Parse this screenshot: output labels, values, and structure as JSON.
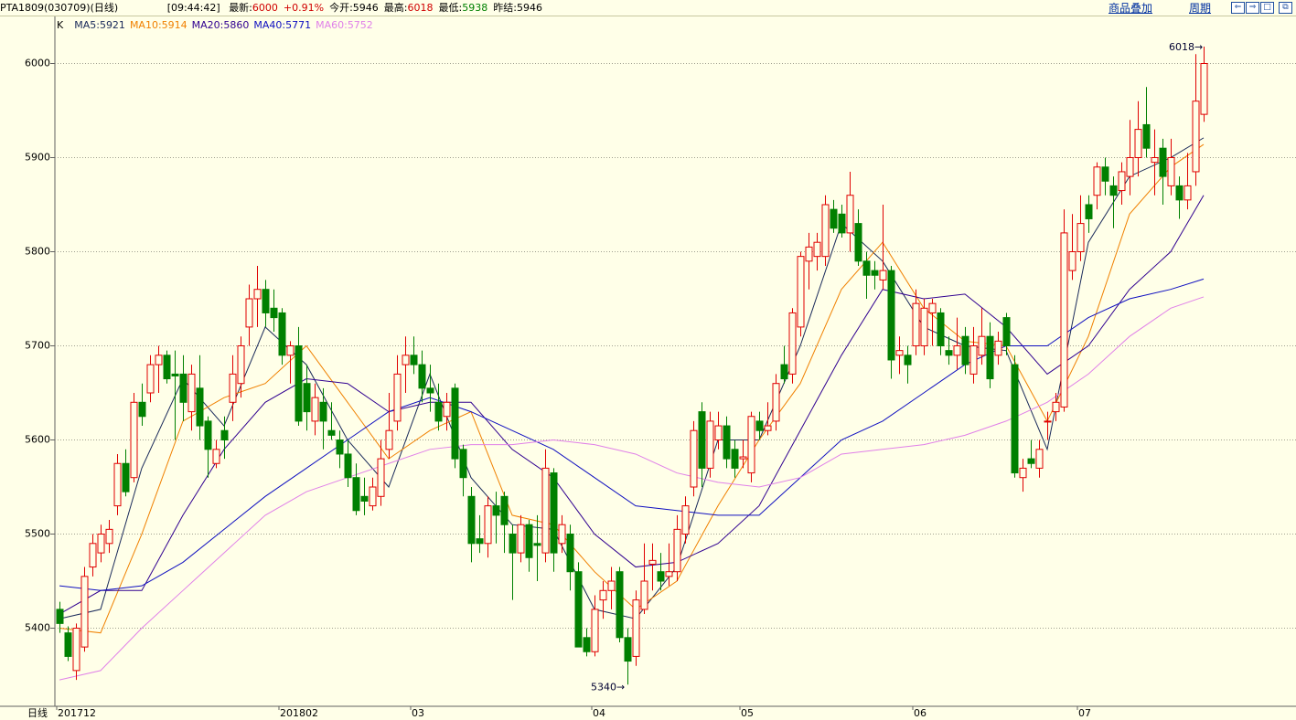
{
  "header": {
    "title": "PTA1809(030709)(日线)",
    "time": "[09:44:42]",
    "quotes": [
      {
        "label": "最新:",
        "value": "6000",
        "color": "#d00000"
      },
      {
        "label": "",
        "value": "+0.91%",
        "color": "#d00000"
      },
      {
        "label": "今开:",
        "value": "5946",
        "color": "#000000"
      },
      {
        "label": "最高:",
        "value": "6018",
        "color": "#d00000"
      },
      {
        "label": "最低:",
        "value": "5938",
        "color": "#008000"
      },
      {
        "label": "昨结:",
        "value": "5946",
        "color": "#000000"
      }
    ],
    "buttons": [
      "商品叠加",
      "周期"
    ]
  },
  "chart_data": {
    "type": "candlestick",
    "label": "K",
    "period_label": "日线",
    "categories": [
      "201712",
      null,
      null,
      null,
      null,
      null,
      null,
      null,
      null,
      null,
      null,
      null,
      null,
      null,
      null,
      null,
      null,
      null,
      null,
      null,
      null,
      null,
      null,
      null,
      null,
      null,
      null,
      "201802",
      null,
      null,
      null,
      null,
      null,
      null,
      null,
      null,
      null,
      null,
      null,
      null,
      null,
      null,
      null,
      "03",
      null,
      null,
      null,
      null,
      null,
      null,
      null,
      null,
      null,
      null,
      null,
      null,
      null,
      null,
      null,
      null,
      null,
      null,
      null,
      null,
      null,
      "04",
      null,
      null,
      null,
      null,
      null,
      null,
      null,
      null,
      null,
      null,
      null,
      null,
      null,
      null,
      null,
      null,
      null,
      "05",
      null,
      null,
      null,
      null,
      null,
      null,
      null,
      null,
      null,
      null,
      null,
      null,
      null,
      null,
      null,
      null,
      null,
      null,
      null,
      null,
      "06",
      null,
      null,
      null,
      null,
      null,
      null,
      null,
      null,
      null,
      null,
      null,
      null,
      null,
      null,
      null,
      null,
      null,
      null,
      null,
      "07",
      null,
      null,
      null,
      null,
      null,
      null,
      null,
      null,
      null,
      null,
      null,
      null,
      null,
      null,
      null
    ],
    "ohlc": [
      [
        5420,
        5428,
        5395,
        5405
      ],
      [
        5395,
        5402,
        5365,
        5370
      ],
      [
        5355,
        5405,
        5345,
        5400
      ],
      [
        5380,
        5465,
        5375,
        5455
      ],
      [
        5465,
        5500,
        5455,
        5490
      ],
      [
        5480,
        5510,
        5470,
        5500
      ],
      [
        5490,
        5515,
        5480,
        5505
      ],
      [
        5530,
        5585,
        5520,
        5575
      ],
      [
        5575,
        5590,
        5540,
        5545
      ],
      [
        5560,
        5650,
        5555,
        5640
      ],
      [
        5640,
        5660,
        5615,
        5625
      ],
      [
        5650,
        5690,
        5640,
        5680
      ],
      [
        5680,
        5700,
        5650,
        5690
      ],
      [
        5690,
        5695,
        5660,
        5665
      ],
      [
        5670,
        5695,
        5600,
        5668
      ],
      [
        5670,
        5690,
        5620,
        5640
      ],
      [
        5630,
        5680,
        5610,
        5670
      ],
      [
        5655,
        5690,
        5600,
        5615
      ],
      [
        5620,
        5625,
        5560,
        5590
      ],
      [
        5575,
        5600,
        5570,
        5590
      ],
      [
        5610,
        5625,
        5580,
        5600
      ],
      [
        5640,
        5690,
        5620,
        5670
      ],
      [
        5660,
        5710,
        5645,
        5700
      ],
      [
        5720,
        5765,
        5700,
        5750
      ],
      [
        5750,
        5785,
        5720,
        5760
      ],
      [
        5760,
        5770,
        5720,
        5735
      ],
      [
        5740,
        5760,
        5715,
        5730
      ],
      [
        5735,
        5740,
        5680,
        5690
      ],
      [
        5690,
        5705,
        5660,
        5700
      ],
      [
        5700,
        5720,
        5615,
        5620
      ],
      [
        5660,
        5680,
        5610,
        5630
      ],
      [
        5620,
        5660,
        5605,
        5645
      ],
      [
        5640,
        5655,
        5590,
        5620
      ],
      [
        5610,
        5640,
        5600,
        5605
      ],
      [
        5600,
        5610,
        5570,
        5585
      ],
      [
        5585,
        5600,
        5550,
        5560
      ],
      [
        5560,
        5575,
        5520,
        5525
      ],
      [
        5540,
        5560,
        5520,
        5535
      ],
      [
        5530,
        5560,
        5525,
        5550
      ],
      [
        5540,
        5600,
        5530,
        5580
      ],
      [
        5590,
        5650,
        5580,
        5610
      ],
      [
        5620,
        5690,
        5610,
        5670
      ],
      [
        5680,
        5710,
        5650,
        5690
      ],
      [
        5690,
        5710,
        5670,
        5680
      ],
      [
        5680,
        5695,
        5640,
        5655
      ],
      [
        5655,
        5680,
        5630,
        5650
      ],
      [
        5640,
        5660,
        5610,
        5620
      ],
      [
        5625,
        5650,
        5610,
        5640
      ],
      [
        5655,
        5660,
        5570,
        5580
      ],
      [
        5590,
        5595,
        5540,
        5560
      ],
      [
        5540,
        5550,
        5470,
        5490
      ],
      [
        5495,
        5520,
        5480,
        5490
      ],
      [
        5490,
        5540,
        5475,
        5530
      ],
      [
        5530,
        5545,
        5490,
        5520
      ],
      [
        5540,
        5545,
        5480,
        5510
      ],
      [
        5500,
        5510,
        5430,
        5480
      ],
      [
        5480,
        5520,
        5470,
        5510
      ],
      [
        5510,
        5515,
        5460,
        5475
      ],
      [
        5490,
        5520,
        5450,
        5488
      ],
      [
        5480,
        5590,
        5470,
        5570
      ],
      [
        5565,
        5570,
        5460,
        5480
      ],
      [
        5490,
        5520,
        5480,
        5510
      ],
      [
        5500,
        5510,
        5440,
        5460
      ],
      [
        5460,
        5470,
        5380,
        5380
      ],
      [
        5390,
        5400,
        5370,
        5375
      ],
      [
        5375,
        5435,
        5370,
        5420
      ],
      [
        5430,
        5450,
        5410,
        5440
      ],
      [
        5440,
        5465,
        5420,
        5450
      ],
      [
        5460,
        5465,
        5385,
        5390
      ],
      [
        5390,
        5400,
        5340,
        5365
      ],
      [
        5370,
        5440,
        5360,
        5430
      ],
      [
        5420,
        5490,
        5415,
        5450
      ],
      [
        5468,
        5490,
        5440,
        5472
      ],
      [
        5460,
        5480,
        5440,
        5450
      ],
      [
        5455,
        5490,
        5445,
        5460
      ],
      [
        5460,
        5520,
        5450,
        5505
      ],
      [
        5500,
        5540,
        5490,
        5530
      ],
      [
        5550,
        5620,
        5540,
        5610
      ],
      [
        5630,
        5640,
        5550,
        5570
      ],
      [
        5570,
        5630,
        5560,
        5620
      ],
      [
        5600,
        5630,
        5590,
        5615
      ],
      [
        5615,
        5625,
        5570,
        5580
      ],
      [
        5590,
        5600,
        5560,
        5570
      ],
      [
        5580,
        5600,
        5570,
        5582
      ],
      [
        5565,
        5630,
        5555,
        5625
      ],
      [
        5620,
        5630,
        5600,
        5610
      ],
      [
        5610,
        5640,
        5605,
        5615
      ],
      [
        5620,
        5670,
        5610,
        5660
      ],
      [
        5680,
        5700,
        5660,
        5665
      ],
      [
        5670,
        5740,
        5660,
        5735
      ],
      [
        5720,
        5800,
        5710,
        5795
      ],
      [
        5790,
        5820,
        5760,
        5805
      ],
      [
        5795,
        5820,
        5780,
        5810
      ],
      [
        5795,
        5860,
        5785,
        5850
      ],
      [
        5845,
        5855,
        5820,
        5825
      ],
      [
        5840,
        5850,
        5815,
        5820
      ],
      [
        5820,
        5885,
        5800,
        5860
      ],
      [
        5830,
        5845,
        5785,
        5790
      ],
      [
        5790,
        5800,
        5750,
        5775
      ],
      [
        5780,
        5790,
        5760,
        5775
      ],
      [
        5770,
        5850,
        5760,
        5780
      ],
      [
        5780,
        5785,
        5665,
        5685
      ],
      [
        5690,
        5710,
        5670,
        5695
      ],
      [
        5690,
        5700,
        5660,
        5680
      ],
      [
        5700,
        5760,
        5690,
        5745
      ],
      [
        5700,
        5750,
        5690,
        5740
      ],
      [
        5735,
        5750,
        5700,
        5745
      ],
      [
        5735,
        5740,
        5690,
        5700
      ],
      [
        5695,
        5710,
        5680,
        5690
      ],
      [
        5690,
        5730,
        5675,
        5700
      ],
      [
        5710,
        5720,
        5670,
        5680
      ],
      [
        5670,
        5720,
        5660,
        5700
      ],
      [
        5690,
        5740,
        5680,
        5710
      ],
      [
        5710,
        5725,
        5655,
        5665
      ],
      [
        5690,
        5715,
        5680,
        5705
      ],
      [
        5730,
        5735,
        5690,
        5700
      ],
      [
        5680,
        5690,
        5560,
        5565
      ],
      [
        5560,
        5580,
        5545,
        5570
      ],
      [
        5580,
        5600,
        5570,
        5575
      ],
      [
        5570,
        5600,
        5560,
        5590
      ],
      [
        5620,
        5630,
        5600,
        5620
      ],
      [
        5630,
        5650,
        5620,
        5640
      ],
      [
        5635,
        5845,
        5630,
        5820
      ],
      [
        5780,
        5840,
        5770,
        5800
      ],
      [
        5800,
        5860,
        5790,
        5830
      ],
      [
        5850,
        5860,
        5820,
        5835
      ],
      [
        5860,
        5895,
        5845,
        5890
      ],
      [
        5890,
        5900,
        5860,
        5875
      ],
      [
        5870,
        5880,
        5825,
        5860
      ],
      [
        5865,
        5895,
        5850,
        5885
      ],
      [
        5880,
        5940,
        5860,
        5900
      ],
      [
        5900,
        5960,
        5880,
        5930
      ],
      [
        5935,
        5975,
        5900,
        5910
      ],
      [
        5895,
        5930,
        5860,
        5900
      ],
      [
        5910,
        5920,
        5850,
        5880
      ],
      [
        5870,
        5920,
        5860,
        5900
      ],
      [
        5870,
        5880,
        5835,
        5855
      ],
      [
        5855,
        5905,
        5845,
        5870
      ],
      [
        5885,
        6010,
        5870,
        5960
      ],
      [
        5946,
        6018,
        5938,
        6000
      ]
    ],
    "up_color": "#e00000",
    "down_color": "#008000",
    "series": [
      {
        "name": "MA5:5921",
        "color": "#1a2a5a",
        "x": [
          0,
          5,
          10,
          15,
          20,
          25,
          30,
          35,
          40,
          45,
          50,
          55,
          60,
          65,
          70,
          75,
          80,
          85,
          90,
          95,
          100,
          105,
          110,
          115,
          120,
          125,
          130,
          135,
          139
        ],
        "values": [
          5410,
          5420,
          5570,
          5665,
          5615,
          5720,
          5680,
          5600,
          5550,
          5670,
          5560,
          5510,
          5505,
          5420,
          5410,
          5465,
          5600,
          5600,
          5700,
          5830,
          5790,
          5720,
          5700,
          5695,
          5590,
          5810,
          5880,
          5900,
          5921
        ]
      },
      {
        "name": "MA10:5914",
        "color": "#f08000",
        "x": [
          0,
          5,
          10,
          15,
          20,
          25,
          30,
          35,
          40,
          45,
          50,
          55,
          60,
          65,
          70,
          75,
          80,
          85,
          90,
          95,
          100,
          105,
          110,
          115,
          120,
          125,
          130,
          135,
          139
        ],
        "values": [
          5400,
          5395,
          5500,
          5620,
          5645,
          5660,
          5700,
          5640,
          5580,
          5610,
          5630,
          5520,
          5510,
          5460,
          5420,
          5450,
          5530,
          5600,
          5660,
          5760,
          5810,
          5740,
          5705,
          5700,
          5620,
          5710,
          5840,
          5890,
          5914
        ]
      },
      {
        "name": "MA20:5860",
        "color": "#300090",
        "x": [
          0,
          5,
          10,
          15,
          20,
          25,
          30,
          35,
          40,
          45,
          50,
          55,
          60,
          65,
          70,
          75,
          80,
          85,
          90,
          95,
          100,
          105,
          110,
          115,
          120,
          125,
          130,
          135,
          139
        ],
        "values": [
          5415,
          5440,
          5440,
          5520,
          5590,
          5640,
          5665,
          5660,
          5630,
          5640,
          5640,
          5590,
          5560,
          5500,
          5465,
          5470,
          5490,
          5530,
          5610,
          5690,
          5760,
          5750,
          5755,
          5720,
          5670,
          5700,
          5760,
          5800,
          5860
        ]
      },
      {
        "name": "MA40:5771",
        "color": "#1010c0",
        "x": [
          0,
          5,
          10,
          15,
          20,
          25,
          30,
          35,
          40,
          45,
          50,
          55,
          60,
          65,
          70,
          75,
          80,
          85,
          90,
          95,
          100,
          105,
          110,
          115,
          120,
          125,
          130,
          135,
          139
        ],
        "values": [
          5445,
          5440,
          5445,
          5470,
          5505,
          5540,
          5570,
          5600,
          5630,
          5645,
          5630,
          5610,
          5590,
          5560,
          5530,
          5525,
          5520,
          5520,
          5560,
          5600,
          5620,
          5650,
          5680,
          5700,
          5700,
          5730,
          5750,
          5760,
          5771
        ]
      },
      {
        "name": "MA60:5752",
        "color": "#e080e8",
        "x": [
          0,
          5,
          10,
          15,
          20,
          25,
          30,
          35,
          40,
          45,
          50,
          55,
          60,
          65,
          70,
          75,
          80,
          85,
          90,
          95,
          100,
          105,
          110,
          115,
          120,
          125,
          130,
          135,
          139
        ],
        "values": [
          5345,
          5355,
          5400,
          5440,
          5480,
          5520,
          5545,
          5560,
          5575,
          5590,
          5595,
          5595,
          5600,
          5595,
          5585,
          5565,
          5555,
          5550,
          5560,
          5585,
          5590,
          5595,
          5605,
          5620,
          5640,
          5670,
          5710,
          5740,
          5752
        ]
      }
    ],
    "ylim": [
      5317,
      6050
    ],
    "yticks": [
      5400,
      5500,
      5600,
      5700,
      5800,
      5900,
      6000
    ],
    "grid": true
  }
}
